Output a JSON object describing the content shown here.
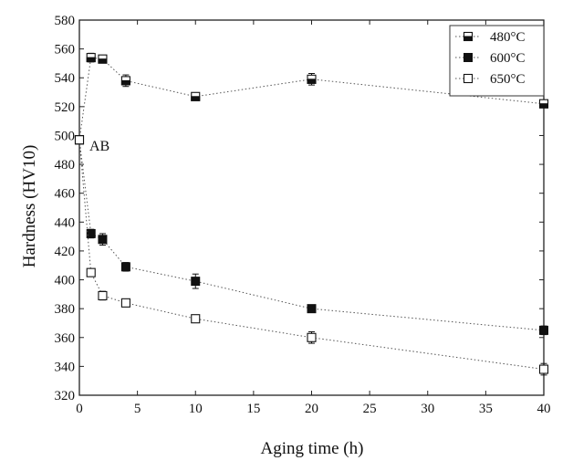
{
  "chart_data": {
    "type": "line",
    "title": "",
    "xlabel": "Aging time (h)",
    "ylabel": "Hardness (HV10)",
    "xlim": [
      0,
      40
    ],
    "ylim": [
      320,
      580
    ],
    "xticks": [
      0,
      5,
      10,
      15,
      20,
      25,
      30,
      35,
      40
    ],
    "yticks": [
      320,
      340,
      360,
      380,
      400,
      420,
      440,
      460,
      480,
      500,
      520,
      540,
      560,
      580
    ],
    "grid": false,
    "legend_position": "top-right",
    "annotation": {
      "text": "AB",
      "x": 1,
      "y": 493
    },
    "series": [
      {
        "name": "480°C",
        "marker": "square-half-filled",
        "x": [
          0,
          1,
          2,
          4,
          10,
          20,
          40
        ],
        "y": [
          497,
          554,
          553,
          538,
          527,
          539,
          522
        ],
        "err": [
          2,
          3,
          2,
          4,
          2,
          4,
          2
        ]
      },
      {
        "name": "600°C",
        "marker": "square-filled",
        "x": [
          0,
          1,
          2,
          4,
          10,
          20,
          40
        ],
        "y": [
          497,
          432,
          428,
          409,
          399,
          380,
          365
        ],
        "err": [
          2,
          3,
          4,
          3,
          5,
          2,
          3
        ]
      },
      {
        "name": "650°C",
        "marker": "square-open",
        "x": [
          0,
          1,
          2,
          4,
          10,
          20,
          40
        ],
        "y": [
          497,
          405,
          389,
          384,
          373,
          360,
          338
        ],
        "err": [
          2,
          2,
          3,
          2,
          2,
          4,
          4
        ]
      }
    ]
  }
}
